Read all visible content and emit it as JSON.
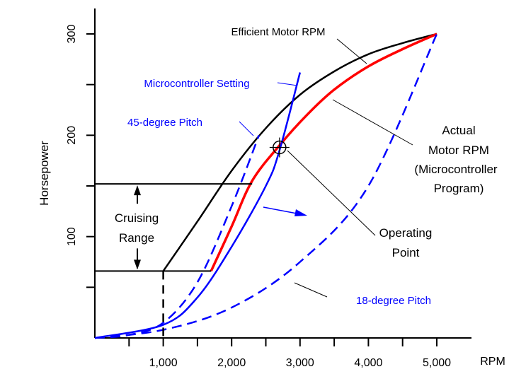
{
  "chart_data": {
    "type": "line",
    "xlabel": "RPM",
    "ylabel": "Horsepower",
    "xlim": [
      0,
      5500
    ],
    "ylim": [
      0,
      320
    ],
    "x_ticks": [
      1000,
      2000,
      3000,
      4000,
      5000
    ],
    "x_tick_labels": [
      "1,000",
      "2,000",
      "3,000",
      "4,000",
      "5,000"
    ],
    "y_ticks": [
      100,
      200,
      300
    ],
    "y_tick_labels": [
      "100",
      "200",
      "300"
    ],
    "colors": {
      "black": "#000000",
      "blue": "#0000ff",
      "red": "#ff0000"
    },
    "series": [
      {
        "name": "Efficient Motor RPM",
        "color": "#000000",
        "dash": false,
        "points": [
          [
            1000,
            66
          ],
          [
            1500,
            115
          ],
          [
            2000,
            165
          ],
          [
            2500,
            207
          ],
          [
            3000,
            240
          ],
          [
            3500,
            263
          ],
          [
            4000,
            280
          ],
          [
            4500,
            291
          ],
          [
            5000,
            300
          ]
        ]
      },
      {
        "name": "Actual Motor RPM (Microcontroller Program)",
        "color": "#ff0000",
        "dash": false,
        "points": [
          [
            1700,
            66
          ],
          [
            2000,
            110
          ],
          [
            2300,
            155
          ],
          [
            2700,
            190
          ],
          [
            3100,
            220
          ],
          [
            3500,
            245
          ],
          [
            4000,
            268
          ],
          [
            4500,
            285
          ],
          [
            5000,
            300
          ]
        ]
      },
      {
        "name": "Microcontroller Setting",
        "color": "#0000ff",
        "dash": false,
        "points": [
          [
            0,
            0
          ],
          [
            1000,
            13
          ],
          [
            1500,
            40
          ],
          [
            2000,
            90
          ],
          [
            2500,
            150
          ],
          [
            2700,
            185
          ],
          [
            3000,
            262
          ]
        ]
      },
      {
        "name": "45-degree Pitch",
        "color": "#0000ff",
        "dash": true,
        "points": [
          [
            0,
            0
          ],
          [
            500,
            3
          ],
          [
            1000,
            15
          ],
          [
            1500,
            55
          ],
          [
            2000,
            130
          ],
          [
            2400,
            200
          ]
        ]
      },
      {
        "name": "18-degree Pitch",
        "color": "#0000ff",
        "dash": true,
        "points": [
          [
            0,
            0
          ],
          [
            1000,
            8
          ],
          [
            2000,
            30
          ],
          [
            3000,
            75
          ],
          [
            4000,
            150
          ],
          [
            5000,
            300
          ]
        ]
      }
    ],
    "annotations": {
      "efficient": "Efficient Motor RPM",
      "micro_setting": "Microcontroller Setting",
      "pitch45": "45-degree Pitch",
      "pitch18": "18-degree Pitch",
      "actual_lines": [
        "Actual",
        "Motor RPM",
        "(Microcontroller",
        "Program)"
      ],
      "operating_lines": [
        "Operating",
        "Point"
      ],
      "cruising_lines": [
        "Cruising",
        "Range"
      ]
    },
    "operating_point": [
      2700,
      188
    ],
    "cruising_range": [
      66,
      152
    ]
  }
}
